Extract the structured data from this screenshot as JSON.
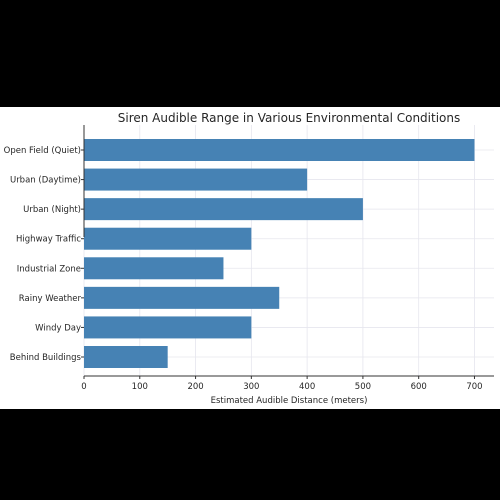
{
  "chart_data": {
    "type": "bar",
    "orientation": "horizontal",
    "title": "Siren Audible Range in Various Environmental Conditions",
    "xlabel": "Estimated Audible Distance (meters)",
    "ylabel": "",
    "categories": [
      "Open Field (Quiet)",
      "Urban (Daytime)",
      "Urban (Night)",
      "Highway Traffic",
      "Industrial Zone",
      "Rainy Weather",
      "Windy Day",
      "Behind Buildings"
    ],
    "values": [
      700,
      400,
      500,
      300,
      250,
      350,
      300,
      150
    ],
    "xlim": [
      0,
      735
    ],
    "xticks": [
      "0",
      "100",
      "200",
      "300",
      "400",
      "500",
      "600",
      "700"
    ],
    "grid": true,
    "bar_color": "#4682b4"
  }
}
